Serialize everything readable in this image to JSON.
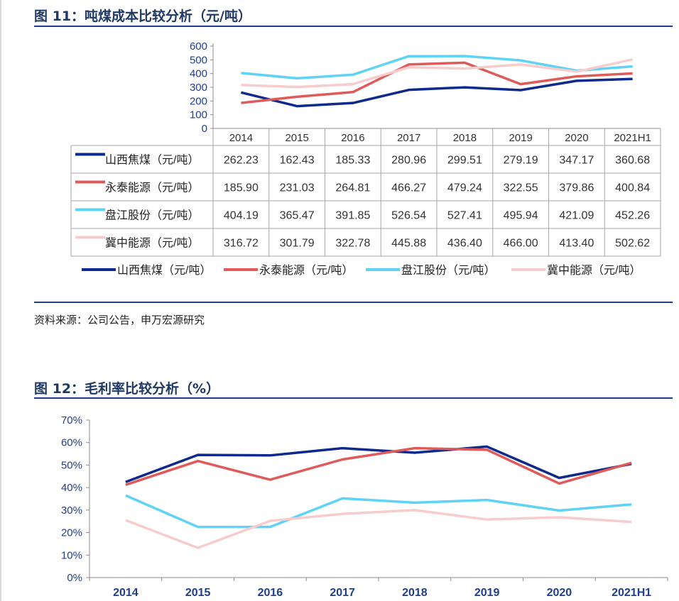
{
  "fig11": {
    "title": "图 11：吨煤成本比较分析（元/吨）",
    "source": "资料来源：公司公告，申万宏源研究"
  },
  "fig12": {
    "title": "图 12：毛利率比较分析（%）"
  },
  "colors": {
    "title": "#1f3864",
    "rule": "#1f3e8c",
    "axis_text": "#1f3e8c",
    "series": [
      "#0d2a8c",
      "#e05a5a",
      "#5fd3f5",
      "#f7cccc"
    ]
  },
  "chart_data": [
    {
      "type": "line",
      "categories": [
        "2014",
        "2015",
        "2016",
        "2017",
        "2018",
        "2019",
        "2020",
        "2021H1"
      ],
      "yticks": [
        "0",
        "100",
        "200",
        "300",
        "400",
        "500",
        "600"
      ],
      "ylim": [
        0,
        600
      ],
      "legend_position": "bottom",
      "table": "data table below chart",
      "series": [
        {
          "name": "山西焦煤（元/吨）",
          "values": [
            262.23,
            162.43,
            185.33,
            280.96,
            299.51,
            279.19,
            347.17,
            360.68
          ],
          "labels": [
            "262.23",
            "162.43",
            "185.33",
            "280.96",
            "299.51",
            "279.19",
            "347.17",
            "360.68"
          ]
        },
        {
          "name": "永泰能源（元/吨）",
          "values": [
            185.9,
            231.03,
            264.81,
            466.27,
            479.24,
            322.55,
            379.86,
            400.84
          ],
          "labels": [
            "185.90",
            "231.03",
            "264.81",
            "466.27",
            "479.24",
            "322.55",
            "379.86",
            "400.84"
          ]
        },
        {
          "name": "盘江股份（元/吨）",
          "values": [
            404.19,
            365.47,
            391.85,
            526.54,
            527.41,
            495.94,
            421.09,
            452.26
          ],
          "labels": [
            "404.19",
            "365.47",
            "391.85",
            "526.54",
            "527.41",
            "495.94",
            "421.09",
            "452.26"
          ]
        },
        {
          "name": "冀中能源（元/吨）",
          "values": [
            316.72,
            301.79,
            322.78,
            445.88,
            436.4,
            466.0,
            413.4,
            502.62
          ],
          "labels": [
            "316.72",
            "301.79",
            "322.78",
            "445.88",
            "436.40",
            "466.00",
            "413.40",
            "502.62"
          ]
        }
      ]
    },
    {
      "type": "line",
      "categories": [
        "2014",
        "2015",
        "2016",
        "2017",
        "2018",
        "2019",
        "2020",
        "2021H1"
      ],
      "yticks": [
        "0%",
        "10%",
        "20%",
        "30%",
        "40%",
        "50%",
        "60%",
        "70%"
      ],
      "ylim": [
        0,
        70
      ],
      "series": [
        {
          "values": [
            42.5,
            54.5,
            54.3,
            57.5,
            55.5,
            58.2,
            44.3,
            50.5
          ]
        },
        {
          "values": [
            41.2,
            51.8,
            43.5,
            52.5,
            57.5,
            56.8,
            41.8,
            51.0
          ]
        },
        {
          "values": [
            36.5,
            22.5,
            22.5,
            35.2,
            33.3,
            34.5,
            29.8,
            32.5
          ]
        },
        {
          "values": [
            25.5,
            13.2,
            25.2,
            28.3,
            30.0,
            25.8,
            26.8,
            24.7
          ]
        }
      ]
    }
  ]
}
